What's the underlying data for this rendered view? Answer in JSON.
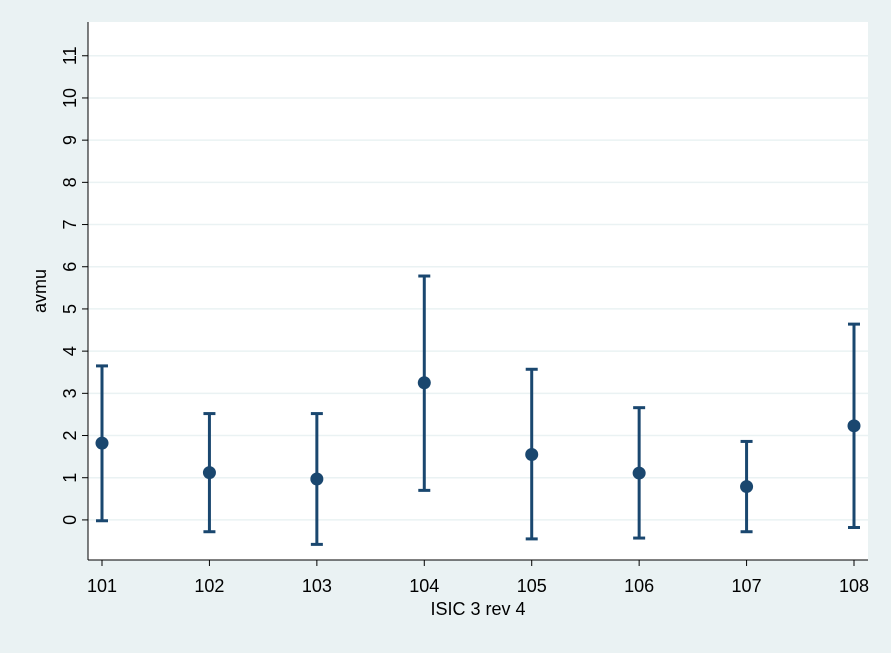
{
  "chart_data": {
    "type": "scatter",
    "title": "",
    "xlabel": "ISIC 3 rev 4",
    "ylabel": "avmu",
    "x_ticks": [
      "101",
      "102",
      "103",
      "104",
      "105",
      "106",
      "107",
      "108"
    ],
    "y_ticks": [
      "0",
      "1",
      "2",
      "3",
      "4",
      "5",
      "6",
      "7",
      "8",
      "9",
      "10",
      "11"
    ],
    "xlim": [
      101,
      108
    ],
    "ylim": [
      -0.95,
      11.8
    ],
    "grid": "horizontal",
    "series": [
      {
        "x": [
          101,
          102,
          103,
          104,
          105,
          106,
          107,
          108
        ],
        "values": [
          1.82,
          1.12,
          0.97,
          3.25,
          1.55,
          1.11,
          0.79,
          2.23
        ],
        "upper": [
          3.65,
          2.52,
          2.52,
          5.78,
          3.57,
          2.66,
          1.86,
          4.64
        ],
        "lower": [
          -0.02,
          -0.28,
          -0.58,
          0.7,
          -0.45,
          -0.43,
          -0.28,
          -0.18
        ]
      }
    ],
    "colors": {
      "marker": "#1a476f",
      "plot_bg": "#ffffff",
      "outer_bg": "#eaf2f3",
      "grid": "#eaf2f3",
      "axis": "#000000"
    }
  }
}
